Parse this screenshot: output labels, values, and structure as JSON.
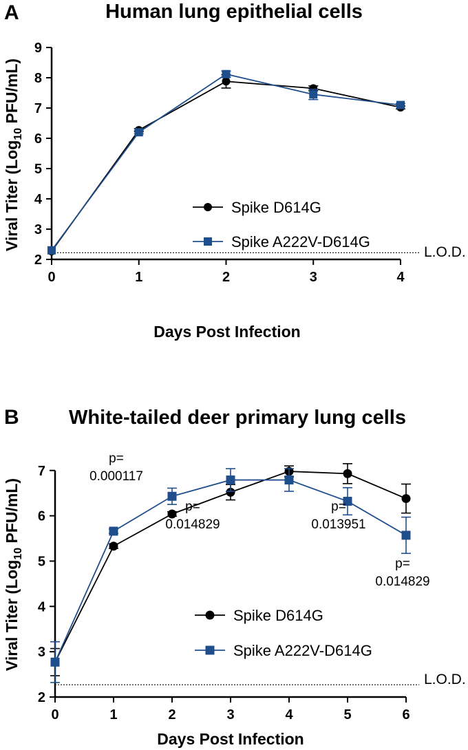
{
  "chart_data": [
    {
      "panel_label": "A",
      "type": "line",
      "title": "Human lung epithelial cells",
      "xlabel": "Days Post Infection",
      "ylabel": "Viral Titer (Log₁₀ PFU/mL)",
      "ylabel_main": "Viral Titer (Log",
      "ylabel_sub": "10",
      "ylabel_tail": " PFU/mL)",
      "xlim": [
        0,
        4
      ],
      "ylim": [
        2,
        9
      ],
      "x_ticks": [
        "0",
        "1",
        "2",
        "3",
        "4"
      ],
      "y_ticks": [
        "2",
        "3",
        "4",
        "5",
        "6",
        "7",
        "8",
        "9"
      ],
      "lod": 2.22,
      "lod_label": "L.O.D.",
      "legend_position": "center-right",
      "x": [
        0,
        1,
        2,
        3,
        4
      ],
      "series": [
        {
          "name": "Spike D614G",
          "color": "#000000",
          "marker": "circle",
          "values": [
            2.27,
            6.27,
            7.88,
            7.65,
            7.02
          ],
          "errors": [
            0.0,
            0.05,
            0.22,
            0.08,
            0.05
          ]
        },
        {
          "name": "Spike A222V-D614G",
          "color": "#1f4e8c",
          "marker": "square",
          "values": [
            2.3,
            6.2,
            8.12,
            7.45,
            7.1
          ],
          "errors": [
            0.0,
            0.05,
            0.1,
            0.17,
            0.05
          ]
        }
      ],
      "annotations": []
    },
    {
      "panel_label": "B",
      "type": "line",
      "title": "White-tailed deer primary lung cells",
      "xlabel": "Days Post Infection",
      "ylabel": "Viral Titer (Log₁₀ PFU/mL)",
      "ylabel_main": "Viral Titer (Log",
      "ylabel_sub": "10",
      "ylabel_tail": " PFU/mL)",
      "xlim": [
        0,
        6
      ],
      "ylim": [
        2,
        7.3
      ],
      "x_ticks": [
        "0",
        "1",
        "2",
        "3",
        "4",
        "5",
        "6"
      ],
      "y_ticks": [
        "2",
        "3",
        "4",
        "5",
        "6",
        "7"
      ],
      "lod": 2.27,
      "lod_label": "L.O.D.",
      "legend_position": "bottom-center",
      "x": [
        0,
        1,
        2,
        3,
        4,
        5,
        6
      ],
      "series": [
        {
          "name": "Spike D614G",
          "color": "#000000",
          "marker": "circle",
          "values": [
            2.77,
            5.33,
            6.04,
            6.52,
            6.98,
            6.93,
            6.38
          ],
          "errors": [
            0.3,
            0.05,
            0.05,
            0.17,
            0.12,
            0.22,
            0.32
          ]
        },
        {
          "name": "Spike A222V-D614G",
          "color": "#1f4e8c",
          "marker": "square",
          "values": [
            2.77,
            5.66,
            6.43,
            6.79,
            6.79,
            6.32,
            5.57
          ],
          "errors": [
            0.45,
            0.05,
            0.18,
            0.25,
            0.25,
            0.3,
            0.4
          ]
        }
      ],
      "annotations": [
        {
          "day": 1,
          "line1": "p=",
          "line2": "0.000117"
        },
        {
          "day": 2,
          "line1": "p=",
          "line2": "0.014829"
        },
        {
          "day": 5,
          "line1": "p=",
          "line2": "0.013951"
        },
        {
          "day": 6,
          "line1": "p=",
          "line2": "0.014829"
        }
      ]
    }
  ]
}
